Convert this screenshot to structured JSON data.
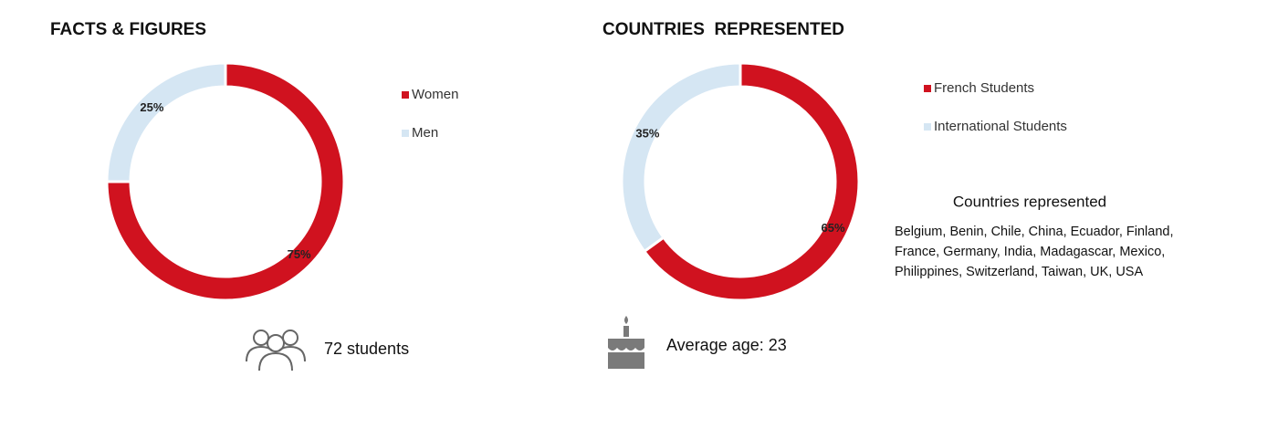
{
  "chart_data": [
    {
      "type": "donut",
      "title": "FACTS & FIGURES",
      "categories": [
        "Women",
        "Men"
      ],
      "values": [
        75,
        25
      ],
      "value_labels": [
        "75%",
        "25%"
      ],
      "colors": [
        "#d0121f",
        "#d5e6f3"
      ]
    },
    {
      "type": "donut",
      "title": "COUNTRIES  REPRESENTED",
      "categories": [
        "French Students",
        "International Students"
      ],
      "values": [
        65,
        35
      ],
      "value_labels": [
        "65%",
        "35%"
      ],
      "colors": [
        "#d0121f",
        "#d5e6f3"
      ]
    }
  ],
  "students": "72 students",
  "average_age": "Average age: 23",
  "countries": {
    "heading": "Countries represented",
    "lines": [
      "Belgium, Benin, Chile, China, Ecuador, Finland,",
      "France, Germany, India, Madagascar, Mexico,",
      "Philippines, Switzerland, Taiwan, UK, USA"
    ]
  }
}
